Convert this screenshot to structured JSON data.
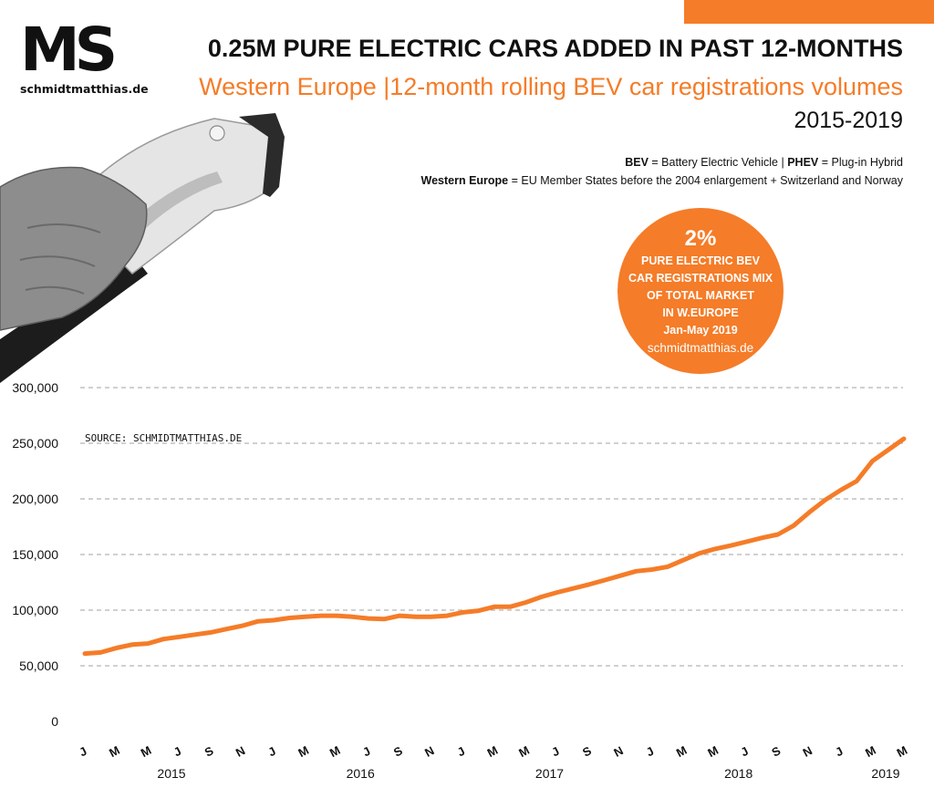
{
  "header": {
    "logo_mark": "MS",
    "logo_site": "schmidtmatthias.de",
    "title": "0.25M PURE ELECTRIC CARS ADDED IN PAST 12-MONTHS",
    "subtitle": "Western Europe |12-month rolling BEV car registrations volumes",
    "years": "2015-2019"
  },
  "notes": {
    "bev_term": "BEV",
    "bev_def": " = Battery Electric Vehicle | ",
    "phev_term": "PHEV",
    "phev_def": " = Plug-in Hybrid",
    "we_term": "Western Europe",
    "we_def": " = EU Member States before the 2004 enlargement + Switzerland and Norway"
  },
  "badge": {
    "pct": "2%",
    "line1": "PURE ELECTRIC BEV",
    "line2": "CAR REGISTRATIONS MIX",
    "line3": "OF TOTAL MARKET",
    "line4": "IN W.EUROPE",
    "line5": "Jan-May 2019",
    "site": "schmidtmatthias.de"
  },
  "colors": {
    "accent": "#f57c28",
    "grid": "#b3b3b3",
    "text": "#111111"
  },
  "chart_data": {
    "type": "line",
    "title": "0.25M PURE ELECTRIC CARS ADDED IN PAST 12-MONTHS",
    "subtitle": "Western Europe |12-month rolling BEV car registrations volumes",
    "ylim": [
      0,
      300000
    ],
    "y_ticks": [
      0,
      50000,
      100000,
      150000,
      200000,
      250000,
      300000
    ],
    "y_tick_labels": [
      "0",
      "50,000",
      "100,000",
      "150,000",
      "200,000",
      "250,000",
      "300,000"
    ],
    "grid": true,
    "source": "SOURCE: SCHMIDTMATTHIAS.DE",
    "x_tick_labels": [
      "J",
      "M",
      "M",
      "J",
      "S",
      "N",
      "J",
      "M",
      "M",
      "J",
      "S",
      "N",
      "J",
      "M",
      "M",
      "J",
      "S",
      "N",
      "J",
      "M",
      "M",
      "J",
      "S",
      "N",
      "J",
      "M",
      "M"
    ],
    "years": [
      {
        "label": "2015",
        "months": 12
      },
      {
        "label": "2016",
        "months": 12
      },
      {
        "label": "2017",
        "months": 12
      },
      {
        "label": "2018",
        "months": 12
      },
      {
        "label": "2019",
        "months": 5
      }
    ],
    "x": [
      "2015-01",
      "2015-02",
      "2015-03",
      "2015-04",
      "2015-05",
      "2015-06",
      "2015-07",
      "2015-08",
      "2015-09",
      "2015-10",
      "2015-11",
      "2015-12",
      "2016-01",
      "2016-02",
      "2016-03",
      "2016-04",
      "2016-05",
      "2016-06",
      "2016-07",
      "2016-08",
      "2016-09",
      "2016-10",
      "2016-11",
      "2016-12",
      "2017-01",
      "2017-02",
      "2017-03",
      "2017-04",
      "2017-05",
      "2017-06",
      "2017-07",
      "2017-08",
      "2017-09",
      "2017-10",
      "2017-11",
      "2017-12",
      "2018-01",
      "2018-02",
      "2018-03",
      "2018-04",
      "2018-05",
      "2018-06",
      "2018-07",
      "2018-08",
      "2018-09",
      "2018-10",
      "2018-11",
      "2018-12",
      "2019-01",
      "2019-02",
      "2019-03",
      "2019-04",
      "2019-05"
    ],
    "series": [
      {
        "values": [
          61000,
          62000,
          66000,
          69000,
          70000,
          74000,
          76000,
          78000,
          80000,
          83000,
          86000,
          90000,
          91000,
          93000,
          94000,
          95000,
          95000,
          94000,
          92500,
          92000,
          95000,
          94000,
          94000,
          95000,
          98000,
          99500,
          103000,
          103000,
          107000,
          112000,
          116000,
          119500,
          123000,
          127000,
          131000,
          135000,
          136500,
          139000,
          145000,
          151000,
          155000,
          158000,
          161500,
          165000,
          168000,
          176000,
          188000,
          199000,
          208000,
          216000,
          234000,
          244000,
          254000
        ]
      }
    ]
  }
}
